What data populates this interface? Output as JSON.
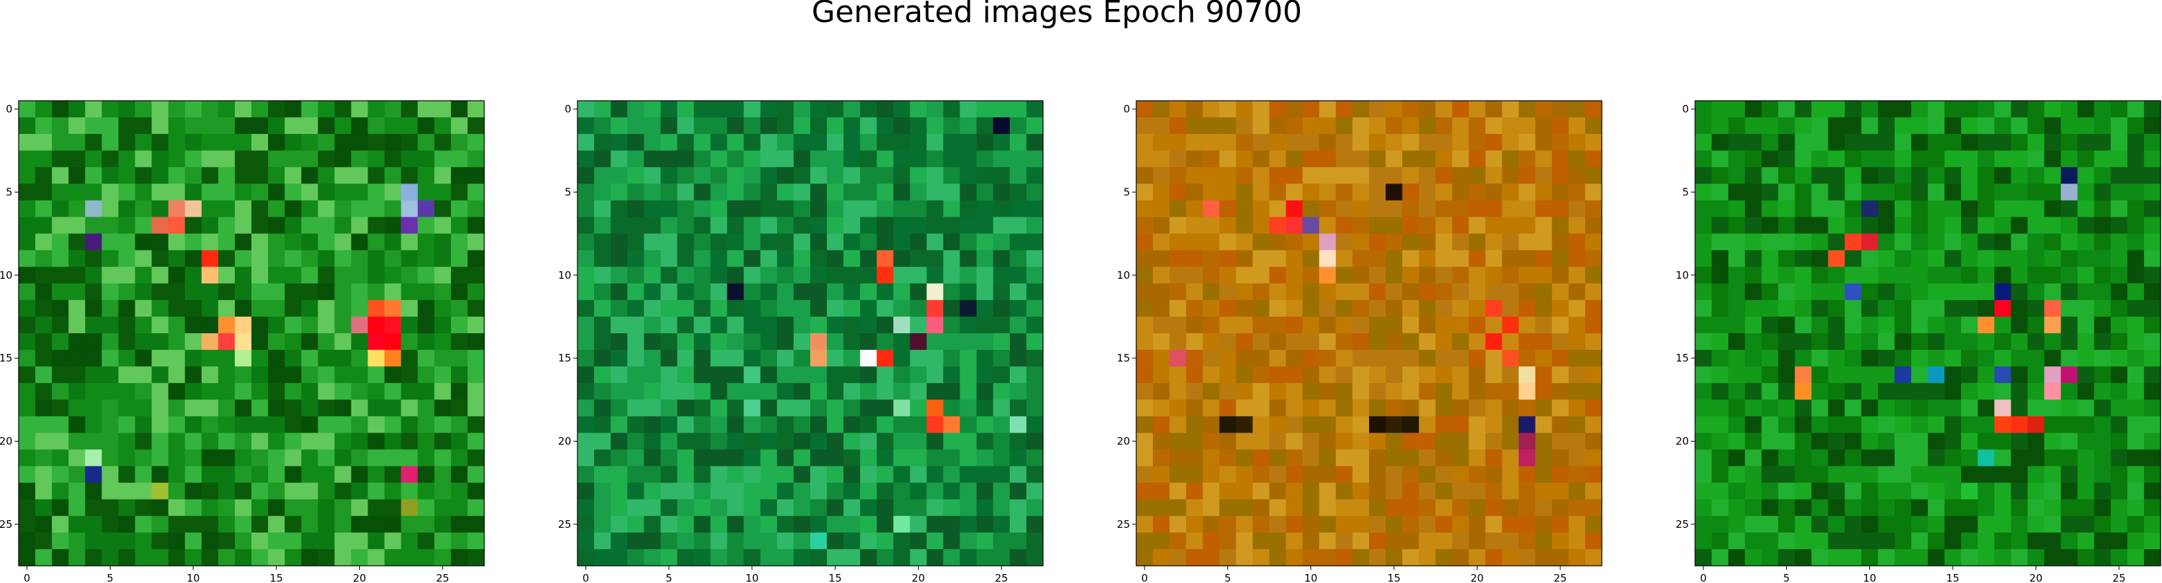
{
  "figure": {
    "title": "Generated images Epoch 90700"
  },
  "chart_data": [
    {
      "type": "heatmap",
      "title": "",
      "grid_size": [
        28,
        28
      ],
      "xlim": [
        -0.5,
        27.5
      ],
      "ylim": [
        27.5,
        -0.5
      ],
      "xticks": [
        0,
        5,
        10,
        15,
        20,
        25
      ],
      "yticks": [
        0,
        5,
        10,
        15,
        20,
        25
      ],
      "palette": [
        "#0a5a0a",
        "#0b7a12",
        "#128a18",
        "#1f9a24",
        "#075007",
        "#34b43c",
        "#63c85a"
      ],
      "highlights": [
        {
          "x": 4,
          "y": 6,
          "color": "#8fb8c8"
        },
        {
          "x": 9,
          "y": 6,
          "color": "#f08060"
        },
        {
          "x": 10,
          "y": 6,
          "color": "#f3c49a"
        },
        {
          "x": 8,
          "y": 7,
          "color": "#e86a4a"
        },
        {
          "x": 9,
          "y": 7,
          "color": "#ff5a3c"
        },
        {
          "x": 4,
          "y": 8,
          "color": "#4a1a7a"
        },
        {
          "x": 11,
          "y": 9,
          "color": "#ff2a10"
        },
        {
          "x": 11,
          "y": 10,
          "color": "#ffc070"
        },
        {
          "x": 12,
          "y": 13,
          "color": "#ff9030"
        },
        {
          "x": 13,
          "y": 13,
          "color": "#ffd080"
        },
        {
          "x": 11,
          "y": 14,
          "color": "#f5b060"
        },
        {
          "x": 12,
          "y": 14,
          "color": "#ff4040"
        },
        {
          "x": 13,
          "y": 14,
          "color": "#ffe090"
        },
        {
          "x": 21,
          "y": 12,
          "color": "#ff5020"
        },
        {
          "x": 22,
          "y": 12,
          "color": "#ff7a30"
        },
        {
          "x": 20,
          "y": 13,
          "color": "#e07080"
        },
        {
          "x": 21,
          "y": 13,
          "color": "#ff0010"
        },
        {
          "x": 22,
          "y": 13,
          "color": "#ff1020"
        },
        {
          "x": 21,
          "y": 14,
          "color": "#ff0020"
        },
        {
          "x": 22,
          "y": 14,
          "color": "#ff0010"
        },
        {
          "x": 21,
          "y": 15,
          "color": "#ffe060"
        },
        {
          "x": 22,
          "y": 15,
          "color": "#ff8020"
        },
        {
          "x": 23,
          "y": 5,
          "color": "#8ab0e0"
        },
        {
          "x": 23,
          "y": 6,
          "color": "#a0c0e0"
        },
        {
          "x": 24,
          "y": 6,
          "color": "#5a3aaa"
        },
        {
          "x": 23,
          "y": 7,
          "color": "#6a30b0"
        },
        {
          "x": 4,
          "y": 21,
          "color": "#a8f0b0"
        },
        {
          "x": 4,
          "y": 22,
          "color": "#1a2a8a"
        },
        {
          "x": 23,
          "y": 22,
          "color": "#e02070"
        },
        {
          "x": 13,
          "y": 15,
          "color": "#b0f090"
        },
        {
          "x": 8,
          "y": 23,
          "color": "#a0c030"
        },
        {
          "x": 23,
          "y": 24,
          "color": "#90a020"
        }
      ]
    },
    {
      "type": "heatmap",
      "title": "",
      "grid_size": [
        28,
        28
      ],
      "xlim": [
        -0.5,
        27.5
      ],
      "ylim": [
        27.5,
        -0.5
      ],
      "xticks": [
        0,
        5,
        10,
        15,
        20,
        25
      ],
      "yticks": [
        0,
        5,
        10,
        15,
        20,
        25
      ],
      "palette": [
        "#0a6a2a",
        "#118a3a",
        "#1aa04a",
        "#067030",
        "#20b050",
        "#0c5a26",
        "#30b868"
      ],
      "highlights": [
        {
          "x": 18,
          "y": 9,
          "color": "#ff6030"
        },
        {
          "x": 18,
          "y": 10,
          "color": "#ff3010"
        },
        {
          "x": 21,
          "y": 11,
          "color": "#f0f0d0"
        },
        {
          "x": 21,
          "y": 12,
          "color": "#ff3a30"
        },
        {
          "x": 19,
          "y": 13,
          "color": "#a0e0c0"
        },
        {
          "x": 21,
          "y": 13,
          "color": "#ff5a80"
        },
        {
          "x": 20,
          "y": 14,
          "color": "#501030"
        },
        {
          "x": 14,
          "y": 14,
          "color": "#f09060"
        },
        {
          "x": 14,
          "y": 15,
          "color": "#f0a060"
        },
        {
          "x": 17,
          "y": 15,
          "color": "#ffffff"
        },
        {
          "x": 18,
          "y": 15,
          "color": "#ff2a10"
        },
        {
          "x": 21,
          "y": 18,
          "color": "#ff6010"
        },
        {
          "x": 21,
          "y": 19,
          "color": "#ff3a20"
        },
        {
          "x": 22,
          "y": 19,
          "color": "#ff7a30"
        },
        {
          "x": 19,
          "y": 18,
          "color": "#80e0a0"
        },
        {
          "x": 26,
          "y": 19,
          "color": "#80e0b0"
        },
        {
          "x": 25,
          "y": 1,
          "color": "#0a0a30"
        },
        {
          "x": 9,
          "y": 11,
          "color": "#0a1030"
        },
        {
          "x": 23,
          "y": 12,
          "color": "#0a1a30"
        },
        {
          "x": 14,
          "y": 26,
          "color": "#2ad0a0"
        },
        {
          "x": 19,
          "y": 25,
          "color": "#70e8a0"
        },
        {
          "x": 10,
          "y": 16,
          "color": "#40c880"
        },
        {
          "x": 10,
          "y": 18,
          "color": "#50d090"
        }
      ]
    },
    {
      "type": "heatmap",
      "title": "",
      "grid_size": [
        28,
        28
      ],
      "xlim": [
        -0.5,
        27.5
      ],
      "ylim": [
        27.5,
        -0.5
      ],
      "xticks": [
        0,
        5,
        10,
        15,
        20,
        25
      ],
      "yticks": [
        0,
        5,
        10,
        15,
        20,
        25
      ],
      "palette": [
        "#c07a00",
        "#b86a00",
        "#c88a10",
        "#a86a00",
        "#d09a20",
        "#b87a10",
        "#9a7000",
        "#c06000"
      ],
      "highlights": [
        {
          "x": 9,
          "y": 6,
          "color": "#ff1010"
        },
        {
          "x": 8,
          "y": 7,
          "color": "#ff4020"
        },
        {
          "x": 9,
          "y": 7,
          "color": "#ff3030"
        },
        {
          "x": 10,
          "y": 7,
          "color": "#6a4aa0"
        },
        {
          "x": 11,
          "y": 8,
          "color": "#e0a0c0"
        },
        {
          "x": 11,
          "y": 9,
          "color": "#ffe0c0"
        },
        {
          "x": 11,
          "y": 10,
          "color": "#ff9030"
        },
        {
          "x": 21,
          "y": 12,
          "color": "#ff4020"
        },
        {
          "x": 22,
          "y": 13,
          "color": "#ff3010"
        },
        {
          "x": 21,
          "y": 14,
          "color": "#ff2010"
        },
        {
          "x": 22,
          "y": 15,
          "color": "#ff5020"
        },
        {
          "x": 23,
          "y": 16,
          "color": "#f0e0a0"
        },
        {
          "x": 23,
          "y": 17,
          "color": "#ffd090"
        },
        {
          "x": 23,
          "y": 19,
          "color": "#1a1a6a"
        },
        {
          "x": 23,
          "y": 20,
          "color": "#a02050"
        },
        {
          "x": 23,
          "y": 21,
          "color": "#c02060"
        },
        {
          "x": 15,
          "y": 5,
          "color": "#201000"
        },
        {
          "x": 5,
          "y": 19,
          "color": "#201800"
        },
        {
          "x": 6,
          "y": 19,
          "color": "#302000"
        },
        {
          "x": 14,
          "y": 19,
          "color": "#201000"
        },
        {
          "x": 15,
          "y": 19,
          "color": "#302000"
        },
        {
          "x": 16,
          "y": 19,
          "color": "#201800"
        },
        {
          "x": 2,
          "y": 15,
          "color": "#e05060"
        },
        {
          "x": 4,
          "y": 6,
          "color": "#ff6040"
        }
      ]
    },
    {
      "type": "heatmap",
      "title": "",
      "grid_size": [
        28,
        28
      ],
      "xlim": [
        -0.5,
        27.5
      ],
      "ylim": [
        27.5,
        -0.5
      ],
      "xticks": [
        0,
        5,
        10,
        15,
        20,
        25
      ],
      "yticks": [
        0,
        5,
        10,
        15,
        20,
        25
      ],
      "palette": [
        "#0a7a0a",
        "#129a18",
        "#0a6010",
        "#1aaa22",
        "#085008",
        "#22b030",
        "#0c8a14"
      ],
      "highlights": [
        {
          "x": 22,
          "y": 5,
          "color": "#9ab0d0"
        },
        {
          "x": 22,
          "y": 4,
          "color": "#0a1a5a"
        },
        {
          "x": 10,
          "y": 6,
          "color": "#1a2a6a"
        },
        {
          "x": 10,
          "y": 8,
          "color": "#e02030"
        },
        {
          "x": 9,
          "y": 8,
          "color": "#ff4020"
        },
        {
          "x": 8,
          "y": 9,
          "color": "#ff5020"
        },
        {
          "x": 9,
          "y": 11,
          "color": "#3050c0"
        },
        {
          "x": 18,
          "y": 11,
          "color": "#0a1a7a"
        },
        {
          "x": 18,
          "y": 12,
          "color": "#ff0020"
        },
        {
          "x": 17,
          "y": 13,
          "color": "#ff9030"
        },
        {
          "x": 21,
          "y": 12,
          "color": "#ff6040"
        },
        {
          "x": 21,
          "y": 13,
          "color": "#ffa050"
        },
        {
          "x": 6,
          "y": 16,
          "color": "#ff8040"
        },
        {
          "x": 6,
          "y": 17,
          "color": "#ff9020"
        },
        {
          "x": 21,
          "y": 16,
          "color": "#e0a0c0"
        },
        {
          "x": 22,
          "y": 16,
          "color": "#c01070"
        },
        {
          "x": 21,
          "y": 17,
          "color": "#ff90a0"
        },
        {
          "x": 18,
          "y": 19,
          "color": "#ff4010"
        },
        {
          "x": 19,
          "y": 19,
          "color": "#ff3010"
        },
        {
          "x": 20,
          "y": 19,
          "color": "#e02010"
        },
        {
          "x": 18,
          "y": 18,
          "color": "#f0c0c0"
        },
        {
          "x": 14,
          "y": 16,
          "color": "#0a9ac0"
        },
        {
          "x": 12,
          "y": 16,
          "color": "#1a3aa0"
        },
        {
          "x": 18,
          "y": 16,
          "color": "#2a4ab0"
        },
        {
          "x": 17,
          "y": 21,
          "color": "#10c0a0"
        },
        {
          "x": 16,
          "y": 23,
          "color": "#20c030"
        }
      ]
    }
  ]
}
